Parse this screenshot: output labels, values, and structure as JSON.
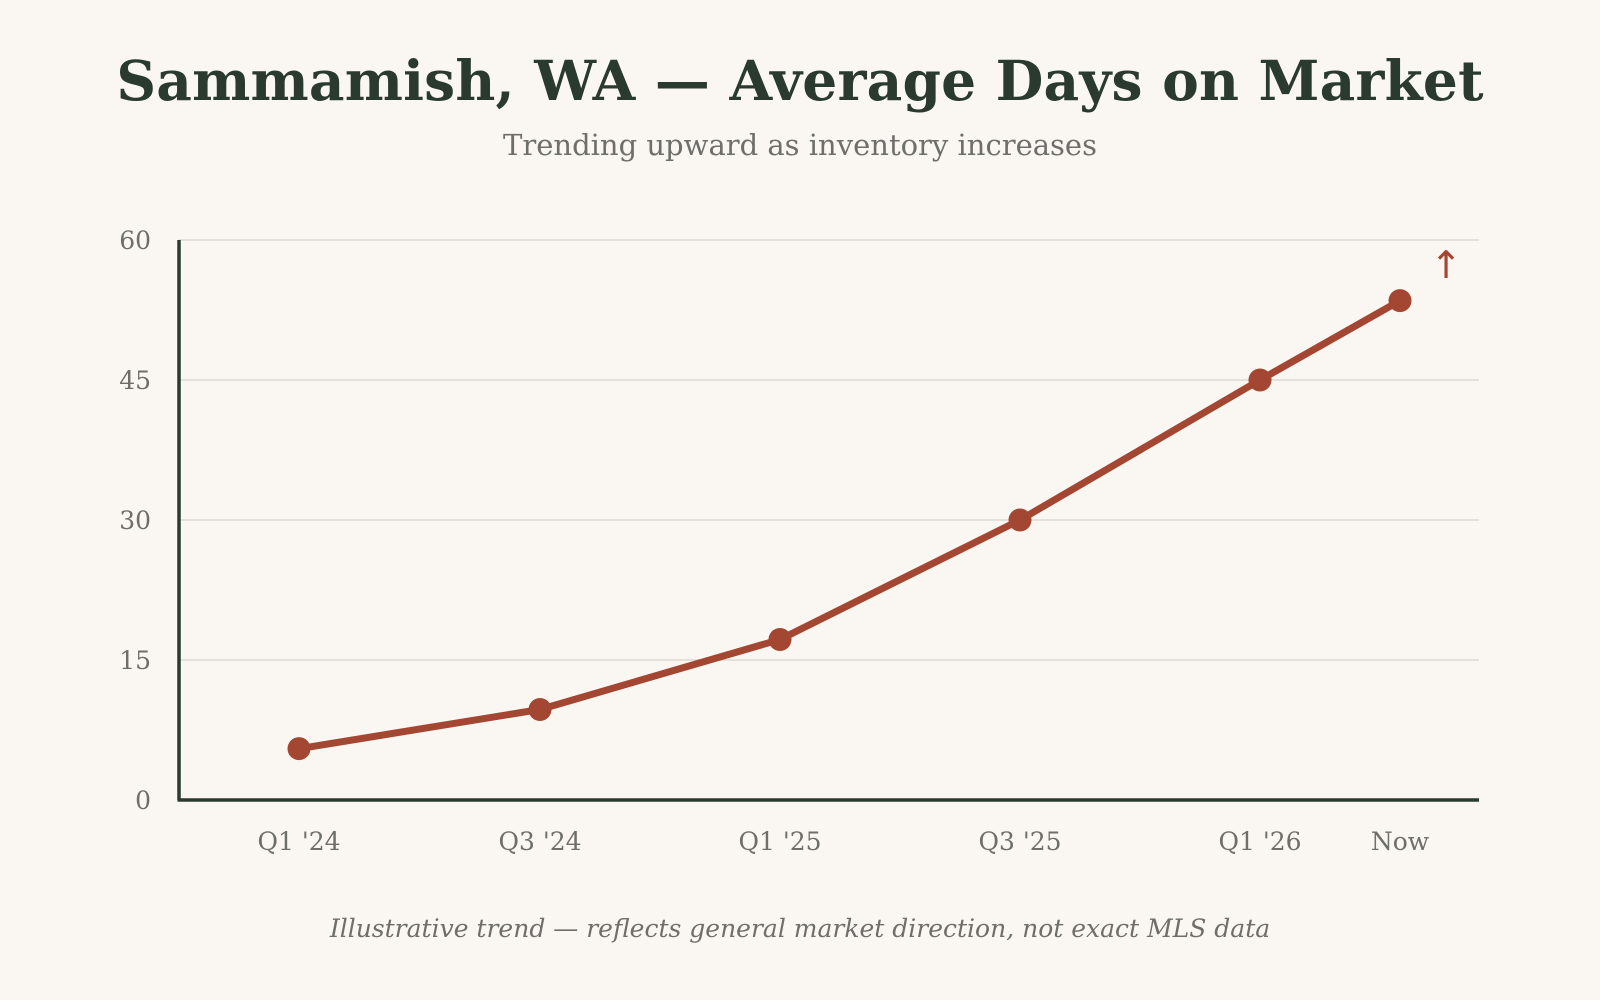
{
  "chart_data": {
    "type": "line",
    "title": "Sammamish, WA — Average Days on Market",
    "subtitle": "Trending upward as inventory increases",
    "footnote": "Illustrative trend — reflects general market direction, not exact MLS data",
    "xlabel": "",
    "ylabel": "",
    "categories": [
      "Q1 '24",
      "Q3 '24",
      "Q1 '25",
      "Q3 '25",
      "Q1 '26",
      "Now"
    ],
    "series": [
      {
        "values": [
          5.5,
          9.7,
          17.2,
          30,
          45,
          53.5
        ]
      }
    ],
    "ylim": [
      0,
      60
    ],
    "yticks": [
      0,
      15,
      30,
      45,
      60
    ],
    "grid": true,
    "annotation": "↑",
    "colors": {
      "line": "#a34632",
      "axis": "#2a3a2f",
      "grid": "#dcd9d2",
      "text": "#6e6e6a",
      "title": "#2a3a2f",
      "background": "#faf7f2"
    }
  }
}
